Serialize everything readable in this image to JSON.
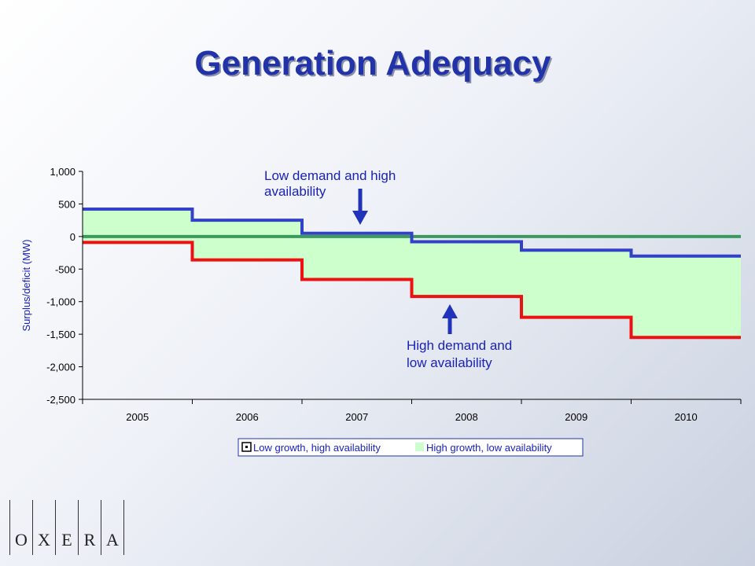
{
  "slide": {
    "title": "Generation Adequacy"
  },
  "logo": {
    "letters": [
      "O",
      "X",
      "E",
      "R",
      "A"
    ]
  },
  "colors": {
    "low_series": "#3340c8",
    "high_series": "#ee1111",
    "zero_line": "#3a9a5e",
    "band_fill": "#ccffcc",
    "annotation": "#1a22b8",
    "arrow": "#2233bb"
  },
  "chart_data": {
    "type": "area",
    "step": true,
    "categories": [
      "2005",
      "2006",
      "2007",
      "2008",
      "2009",
      "2010"
    ],
    "ylabel": "Surplus/deficit (MW)",
    "ylim": [
      -2500,
      1000
    ],
    "yticks": [
      1000,
      500,
      0,
      -500,
      -1000,
      -1500,
      -2000,
      -2500
    ],
    "ytick_labels": [
      "1,000",
      "500",
      "0",
      "-500",
      "-1,000",
      "-1,500",
      "-2,000",
      "-2,500"
    ],
    "series": [
      {
        "name": "Low growth, high availability",
        "values": [
          420,
          250,
          50,
          -80,
          -210,
          -300
        ]
      },
      {
        "name": "High growth, low availability",
        "values": [
          -90,
          -360,
          -660,
          -920,
          -1240,
          -1550
        ]
      }
    ],
    "zero_line": 0,
    "legend_position": "bottom",
    "annotations": [
      {
        "lines": [
          "Low demand and high",
          "availability"
        ],
        "points_to": "2007",
        "arrow": "down"
      },
      {
        "lines": [
          "High demand and",
          "low availability"
        ],
        "points_to": "2008",
        "arrow": "up"
      }
    ]
  }
}
